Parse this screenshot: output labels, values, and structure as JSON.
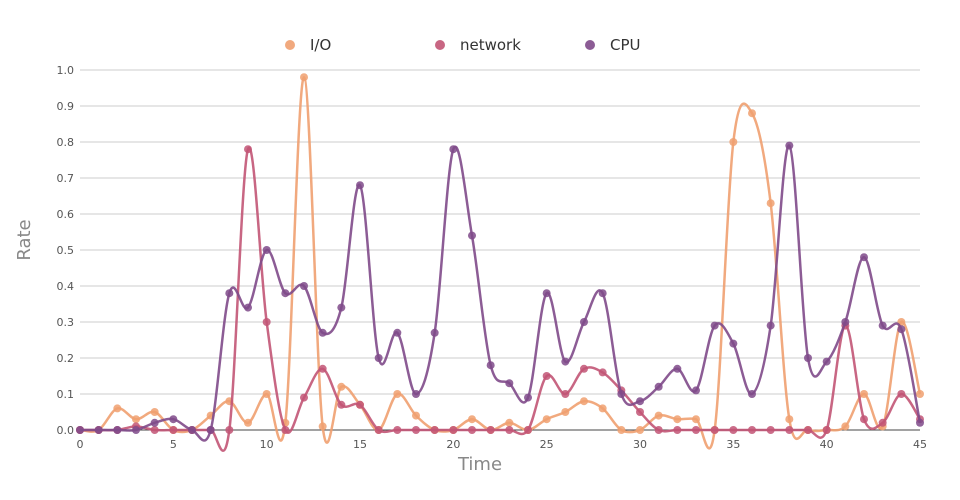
{
  "chart_data": {
    "type": "line",
    "xlabel": "Time",
    "ylabel": "Rate",
    "xlim": [
      0,
      45
    ],
    "ylim": [
      0,
      1.0
    ],
    "x_ticks": [
      0,
      5,
      10,
      15,
      20,
      25,
      30,
      35,
      40,
      45
    ],
    "y_ticks": [
      0.0,
      0.1,
      0.2,
      0.3,
      0.4,
      0.5,
      0.6,
      0.7,
      0.8,
      0.9,
      1.0
    ],
    "x_tick_labels": [
      "0",
      "5",
      "10",
      "15",
      "20",
      "25",
      "30",
      "35",
      "40",
      "45"
    ],
    "y_tick_labels": [
      "0.0",
      "0.1",
      "0.2",
      "0.3",
      "0.4",
      "0.5",
      "0.6",
      "0.7",
      "0.8",
      "0.9",
      "1.0"
    ],
    "grid": true,
    "legend_position": "top",
    "x": [
      0,
      1,
      2,
      3,
      4,
      5,
      6,
      7,
      8,
      9,
      10,
      11,
      12,
      13,
      14,
      15,
      16,
      17,
      18,
      19,
      20,
      21,
      22,
      23,
      24,
      25,
      26,
      27,
      28,
      29,
      30,
      31,
      32,
      33,
      34,
      35,
      36,
      37,
      38,
      39,
      40,
      41,
      42,
      43,
      44,
      45
    ],
    "series": [
      {
        "name": "I/O",
        "color": "#f0a070",
        "values": [
          0,
          0,
          0.06,
          0.03,
          0.05,
          0,
          0,
          0.04,
          0.08,
          0.02,
          0.1,
          0.02,
          0.98,
          0.01,
          0.12,
          0.07,
          0,
          0.1,
          0.04,
          0,
          0,
          0.03,
          0,
          0.02,
          0,
          0.03,
          0.05,
          0.08,
          0.06,
          0,
          0,
          0.04,
          0.03,
          0.03,
          0,
          0.8,
          0.88,
          0.63,
          0.03,
          0,
          0,
          0.01,
          0.1,
          0.01,
          0.3,
          0.1
        ]
      },
      {
        "name": "network",
        "color": "#c25575",
        "values": [
          0,
          0,
          0,
          0.01,
          0,
          0,
          0,
          0,
          0,
          0.78,
          0.3,
          0,
          0.09,
          0.17,
          0.07,
          0.07,
          0,
          0,
          0,
          0,
          0,
          0,
          0,
          0,
          0,
          0.15,
          0.1,
          0.17,
          0.16,
          0.11,
          0.05,
          0,
          0,
          0,
          0,
          0,
          0,
          0,
          0,
          0,
          0,
          0.29,
          0.03,
          0.02,
          0.1,
          0.03
        ]
      },
      {
        "name": "CPU",
        "color": "#7f4a89",
        "values": [
          0,
          0,
          0,
          0,
          0.02,
          0.03,
          0,
          0,
          0.38,
          0.34,
          0.5,
          0.38,
          0.4,
          0.27,
          0.34,
          0.68,
          0.2,
          0.27,
          0.1,
          0.27,
          0.78,
          0.54,
          0.18,
          0.13,
          0.09,
          0.38,
          0.19,
          0.3,
          0.38,
          0.1,
          0.08,
          0.12,
          0.17,
          0.11,
          0.29,
          0.24,
          0.1,
          0.29,
          0.79,
          0.2,
          0.19,
          0.3,
          0.48,
          0.29,
          0.28,
          0.02
        ]
      }
    ]
  }
}
